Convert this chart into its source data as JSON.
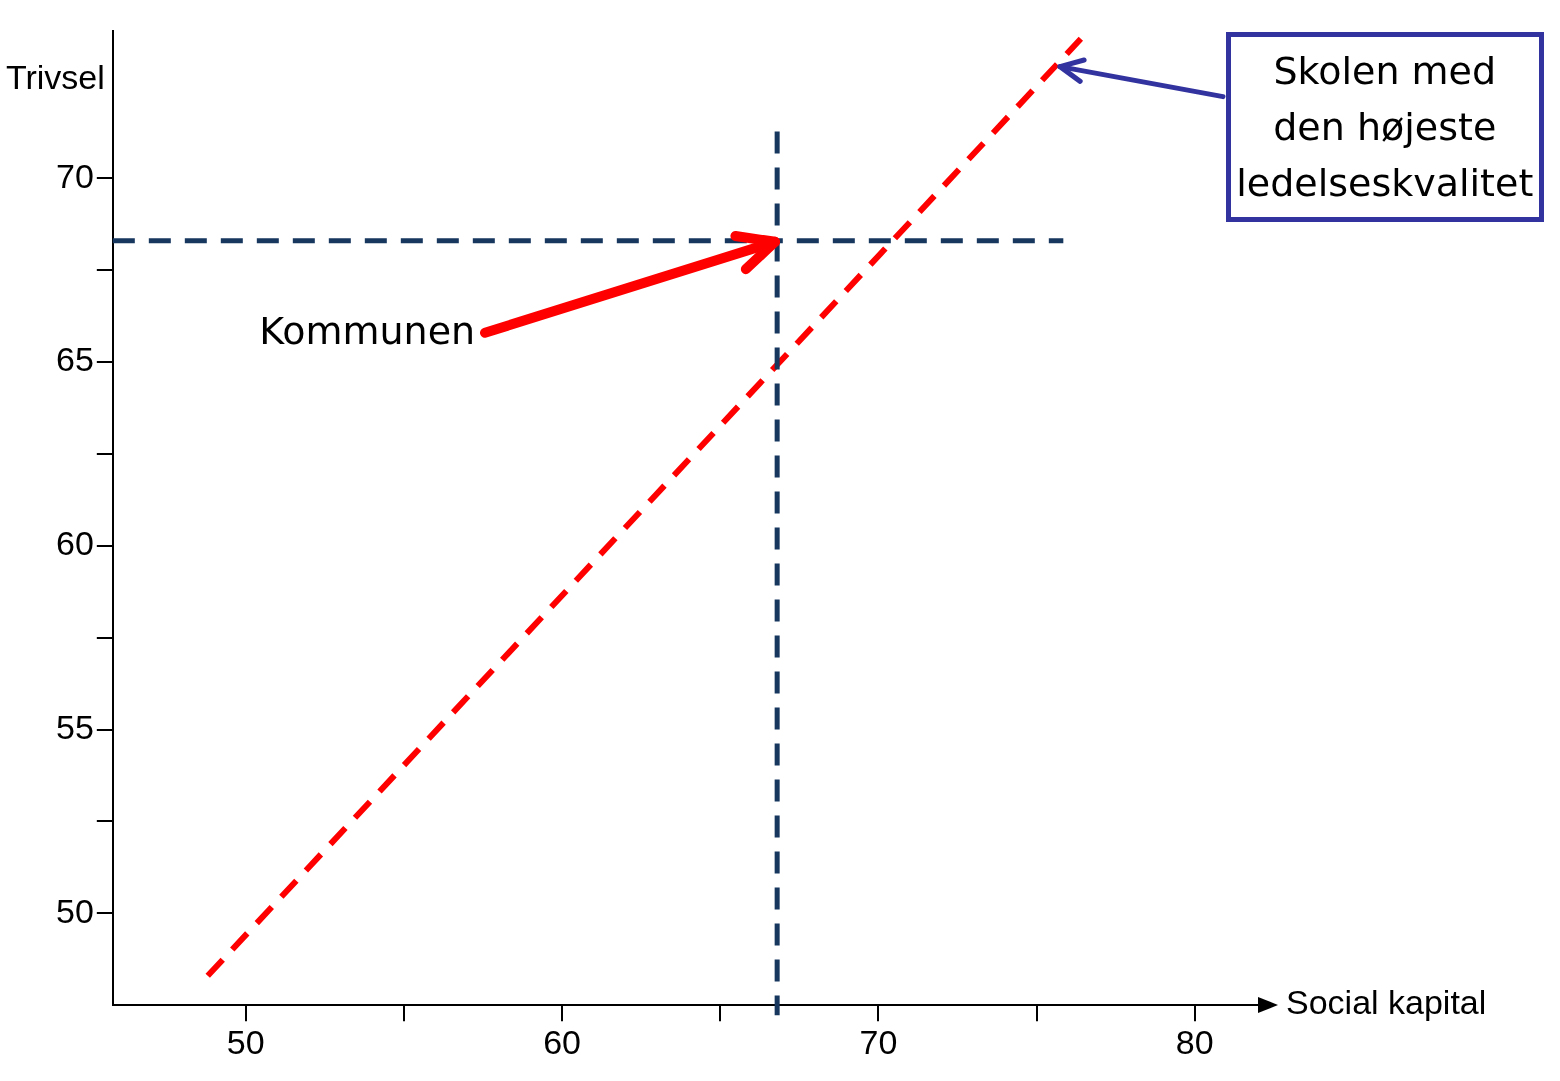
{
  "chart_data": {
    "type": "line",
    "xlabel": "Social kapital",
    "ylabel": "Trivsel",
    "series": [
      {
        "type": "line",
        "color": "#ff0000",
        "line_style": "dashed",
        "x": [
          48.8,
          76.4
        ],
        "values": [
          48.3,
          73.8
        ]
      }
    ],
    "xlim": [
      45.8,
      82
    ],
    "ylim": [
      47.5,
      74
    ],
    "xticks": [
      {
        "value": 50,
        "label": "50"
      },
      {
        "value": 55,
        "label": null
      },
      {
        "value": 60,
        "label": "60"
      },
      {
        "value": 65,
        "label": null
      },
      {
        "value": 70,
        "label": "70"
      },
      {
        "value": 75,
        "label": null
      },
      {
        "value": 80,
        "label": "80"
      }
    ],
    "yticks": [
      {
        "value": 50,
        "label": "50"
      },
      {
        "value": 52.5,
        "label": null
      },
      {
        "value": 55,
        "label": "55"
      },
      {
        "value": 57.5,
        "label": null
      },
      {
        "value": 60,
        "label": "60"
      },
      {
        "value": 62.5,
        "label": null
      },
      {
        "value": 65,
        "label": "65"
      },
      {
        "value": 67.5,
        "label": null
      },
      {
        "value": 70,
        "label": "70"
      }
    ],
    "ref_lines": [
      {
        "axis": "x",
        "value": 66.8,
        "color": "#17375e",
        "line_style": "dashed"
      },
      {
        "axis": "y",
        "value": 68.3,
        "color": "#17375e",
        "line_style": "dashed"
      }
    ],
    "annotations": [
      {
        "text": "Kommunen",
        "x": 66.8,
        "y": 68.3
      },
      {
        "text": "Skolen med den højeste ledelseskvalitet",
        "x": 75.6,
        "y": 73.1
      }
    ],
    "grid": false,
    "legend": false
  }
}
